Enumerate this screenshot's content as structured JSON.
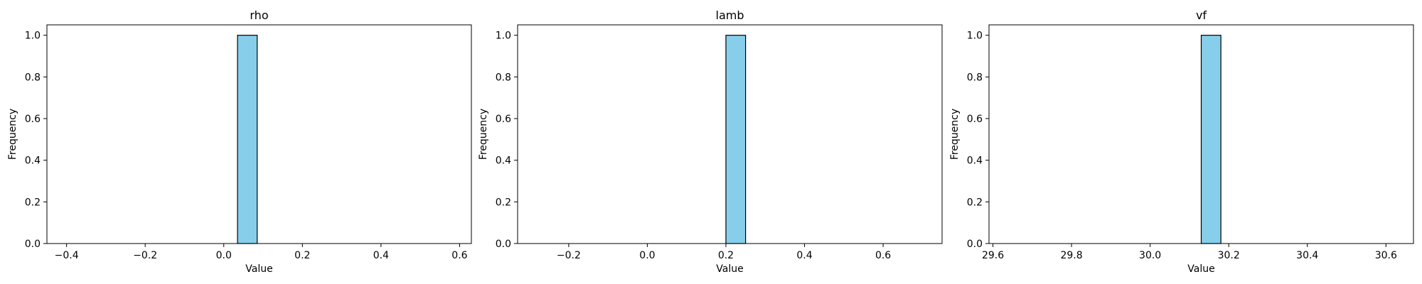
{
  "chart_data": [
    {
      "type": "bar",
      "title": "rho",
      "xlabel": "Value",
      "ylabel": "Frequency",
      "xlim": [
        -0.45,
        0.63
      ],
      "ylim": [
        0,
        1.05
      ],
      "xticks": [
        -0.4,
        -0.2,
        0.0,
        0.2,
        0.4,
        0.6
      ],
      "xtick_labels": [
        "−0.4",
        "−0.2",
        "0.0",
        "0.2",
        "0.4",
        "0.6"
      ],
      "yticks": [
        0.0,
        0.2,
        0.4,
        0.6,
        0.8,
        1.0
      ],
      "ytick_labels": [
        "0.0",
        "0.2",
        "0.4",
        "0.6",
        "0.8",
        "1.0"
      ],
      "bins": [
        {
          "x0": 0.035,
          "x1": 0.085,
          "count": 1
        }
      ],
      "grid": false,
      "bar_color": "#87CEEB",
      "edge_color": "#000000"
    },
    {
      "type": "bar",
      "title": "lamb",
      "xlabel": "Value",
      "ylabel": "Frequency",
      "xlim": [
        -0.33,
        0.75
      ],
      "ylim": [
        0,
        1.05
      ],
      "xticks": [
        -0.2,
        0.0,
        0.2,
        0.4,
        0.6
      ],
      "xtick_labels": [
        "−0.2",
        "0.0",
        "0.2",
        "0.4",
        "0.6"
      ],
      "yticks": [
        0.0,
        0.2,
        0.4,
        0.6,
        0.8,
        1.0
      ],
      "ytick_labels": [
        "0.0",
        "0.2",
        "0.4",
        "0.6",
        "0.8",
        "1.0"
      ],
      "bins": [
        {
          "x0": 0.2,
          "x1": 0.25,
          "count": 1
        }
      ],
      "grid": false,
      "bar_color": "#87CEEB",
      "edge_color": "#000000"
    },
    {
      "type": "bar",
      "title": "vf",
      "xlabel": "Value",
      "ylabel": "Frequency",
      "xlim": [
        29.59,
        30.67
      ],
      "ylim": [
        0,
        1.05
      ],
      "xticks": [
        29.6,
        29.8,
        30.0,
        30.2,
        30.4,
        30.6
      ],
      "xtick_labels": [
        "29.6",
        "29.8",
        "30.0",
        "30.2",
        "30.4",
        "30.6"
      ],
      "yticks": [
        0.0,
        0.2,
        0.4,
        0.6,
        0.8,
        1.0
      ],
      "ytick_labels": [
        "0.0",
        "0.2",
        "0.4",
        "0.6",
        "0.8",
        "1.0"
      ],
      "bins": [
        {
          "x0": 30.13,
          "x1": 30.18,
          "count": 1
        }
      ],
      "grid": false,
      "bar_color": "#87CEEB",
      "edge_color": "#000000"
    }
  ]
}
